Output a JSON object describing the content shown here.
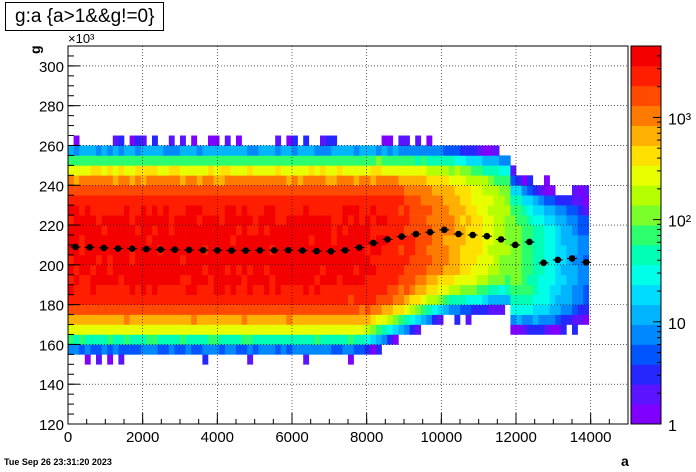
{
  "title": "g:a {a>1&&g!=0}",
  "footer_timestamp": "Tue Sep 26 23:31:20 2023",
  "chart_data": {
    "type": "heatmap",
    "title": "g:a {a>1&&g!=0}",
    "xlabel": "a",
    "ylabel": "g",
    "y_multiplier": "×10³",
    "xlim": [
      0,
      15000
    ],
    "ylim": [
      120,
      310
    ],
    "x_ticks": [
      "0",
      "2000",
      "4000",
      "6000",
      "8000",
      "10000",
      "12000",
      "14000"
    ],
    "y_ticks": [
      "120",
      "140",
      "160",
      "180",
      "200",
      "220",
      "240",
      "260",
      "280",
      "300"
    ],
    "colorbar": {
      "scale": "log",
      "range": [
        1,
        5000
      ],
      "tick_labels": [
        "1",
        "10",
        "10²",
        "10³"
      ]
    },
    "profile_points": [
      [
        200,
        209
      ],
      [
        580,
        208.8
      ],
      [
        960,
        208.5
      ],
      [
        1340,
        208.2
      ],
      [
        1720,
        208.1
      ],
      [
        2100,
        207.9
      ],
      [
        2480,
        207.7
      ],
      [
        2860,
        207.6
      ],
      [
        3240,
        207.5
      ],
      [
        3620,
        207.4
      ],
      [
        4000,
        207.3
      ],
      [
        4380,
        207.2
      ],
      [
        4760,
        207.2
      ],
      [
        5140,
        207.3
      ],
      [
        5520,
        207.3
      ],
      [
        5900,
        207.4
      ],
      [
        6280,
        207.2
      ],
      [
        6660,
        206.9
      ],
      [
        7040,
        206.8
      ],
      [
        7420,
        207.3
      ],
      [
        7800,
        208.7
      ],
      [
        8180,
        211
      ],
      [
        8560,
        212.8
      ],
      [
        8940,
        214.2
      ],
      [
        9320,
        215.5
      ],
      [
        9700,
        216.4
      ],
      [
        10080,
        217.6
      ],
      [
        10460,
        215.5
      ],
      [
        10840,
        215
      ],
      [
        11220,
        214.4
      ],
      [
        11600,
        212.8
      ],
      [
        11980,
        210
      ],
      [
        12360,
        211.5
      ],
      [
        12740,
        201
      ],
      [
        13120,
        202.5
      ],
      [
        13500,
        203.2
      ],
      [
        13880,
        201.3
      ]
    ],
    "grid": true
  }
}
